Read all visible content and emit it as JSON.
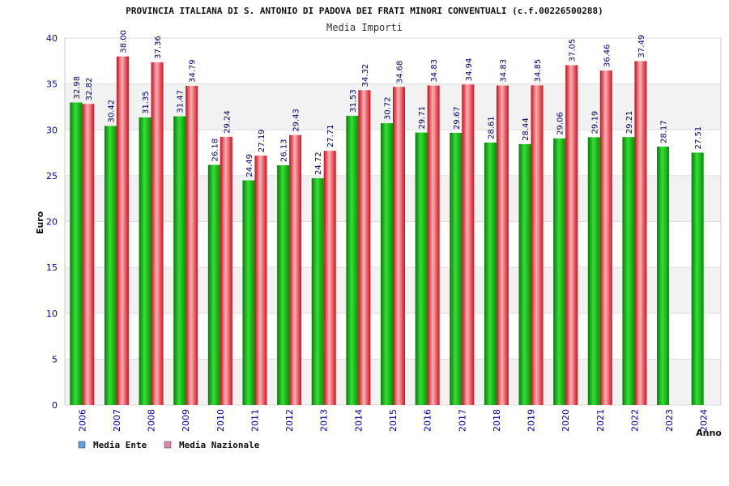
{
  "chart_data": {
    "type": "bar",
    "title": "PROVINCIA ITALIANA DI S. ANTONIO DI PADOVA DEI FRATI MINORI CONVENTUALI (c.f.00226500288)",
    "subtitle": "Media Importi",
    "xlabel": "Anno",
    "ylabel": "Euro",
    "ylim": [
      0,
      40
    ],
    "yticks": [
      0,
      5,
      10,
      15,
      20,
      25,
      30,
      35,
      40
    ],
    "grid": true,
    "legend_position": "bottom-left",
    "categories": [
      "2006",
      "2007",
      "2008",
      "2009",
      "2010",
      "2011",
      "2012",
      "2013",
      "2014",
      "2015",
      "2016",
      "2017",
      "2018",
      "2019",
      "2020",
      "2021",
      "2022",
      "2023",
      "2024"
    ],
    "series": [
      {
        "name": "Media Ente",
        "color": "#1aa31a",
        "legend_color": "#6699dd",
        "values": [
          32.98,
          30.42,
          31.35,
          31.47,
          26.18,
          24.49,
          26.13,
          24.72,
          31.53,
          30.72,
          29.71,
          29.67,
          28.61,
          28.44,
          29.06,
          29.19,
          29.21,
          28.17,
          27.51
        ],
        "labels": [
          "32.98",
          "30.42",
          "31.35",
          "31.47",
          "26.18",
          "24.49",
          "26.13",
          "24.72",
          "31.53",
          "30.72",
          "29.71",
          "29.67",
          "28.61",
          "28.44",
          "29.06",
          "29.19",
          "29.21",
          "28.17",
          "27.51"
        ]
      },
      {
        "name": "Media Nazionale",
        "color": "#e01f2a",
        "legend_color": "#dd88aa",
        "values": [
          32.82,
          38.0,
          37.36,
          34.79,
          29.24,
          27.19,
          29.43,
          27.71,
          34.32,
          34.68,
          34.83,
          34.94,
          34.83,
          34.85,
          37.05,
          36.46,
          37.49,
          null,
          null
        ],
        "labels": [
          "32.82",
          "38.00",
          "37.36",
          "34.79",
          "29.24",
          "27.19",
          "29.43",
          "27.71",
          "34.32",
          "34.68",
          "34.83",
          "34.94",
          "34.83",
          "34.85",
          "37.05",
          "36.46",
          "37.49",
          null,
          null
        ]
      }
    ]
  }
}
